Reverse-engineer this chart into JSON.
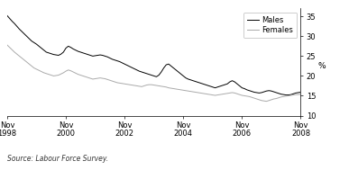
{
  "title": "",
  "ylabel": "%",
  "source_text": "Source: Labour Force Survey.",
  "ylim": [
    10,
    37
  ],
  "yticks": [
    10,
    15,
    20,
    25,
    30,
    35
  ],
  "legend_labels": [
    "Males",
    "Females"
  ],
  "males_color": "#000000",
  "females_color": "#aaaaaa",
  "background_color": "#ffffff",
  "x_tick_positions": [
    0,
    24,
    48,
    72,
    96,
    120
  ],
  "x_tick_labels": [
    "Nov\n1998",
    "Nov\n2000",
    "Nov\n2002",
    "Nov\n2004",
    "Nov\n2006",
    "Nov\n2008"
  ],
  "males_data": [
    35.2,
    34.5,
    33.8,
    33.2,
    32.5,
    31.8,
    31.2,
    30.6,
    30.0,
    29.4,
    28.8,
    28.4,
    28.0,
    27.5,
    27.0,
    26.5,
    26.0,
    25.8,
    25.6,
    25.4,
    25.3,
    25.2,
    25.5,
    26.0,
    27.0,
    27.5,
    27.2,
    26.8,
    26.5,
    26.2,
    26.0,
    25.8,
    25.6,
    25.4,
    25.2,
    25.0,
    25.1,
    25.2,
    25.3,
    25.2,
    25.0,
    24.8,
    24.5,
    24.2,
    24.0,
    23.8,
    23.6,
    23.3,
    23.0,
    22.7,
    22.4,
    22.1,
    21.8,
    21.5,
    21.2,
    21.0,
    20.8,
    20.6,
    20.4,
    20.2,
    20.0,
    19.8,
    20.2,
    21.0,
    22.0,
    22.8,
    23.0,
    22.5,
    22.0,
    21.5,
    21.0,
    20.5,
    20.0,
    19.5,
    19.2,
    19.0,
    18.8,
    18.6,
    18.4,
    18.2,
    18.0,
    17.8,
    17.6,
    17.4,
    17.2,
    17.0,
    17.2,
    17.4,
    17.6,
    17.8,
    18.0,
    18.5,
    18.8,
    18.5,
    18.0,
    17.5,
    17.0,
    16.8,
    16.5,
    16.3,
    16.1,
    15.9,
    15.8,
    15.7,
    15.8,
    16.0,
    16.2,
    16.3,
    16.2,
    16.0,
    15.8,
    15.6,
    15.4,
    15.3,
    15.2,
    15.2,
    15.3,
    15.5,
    15.7,
    15.8,
    15.9
  ],
  "females_data": [
    27.8,
    27.2,
    26.6,
    26.0,
    25.5,
    25.0,
    24.5,
    24.0,
    23.5,
    23.0,
    22.5,
    22.0,
    21.7,
    21.4,
    21.1,
    20.8,
    20.6,
    20.4,
    20.2,
    20.0,
    20.1,
    20.2,
    20.5,
    20.8,
    21.2,
    21.5,
    21.3,
    21.0,
    20.7,
    20.4,
    20.2,
    20.0,
    19.8,
    19.6,
    19.4,
    19.2,
    19.3,
    19.4,
    19.5,
    19.4,
    19.3,
    19.1,
    18.9,
    18.7,
    18.5,
    18.3,
    18.2,
    18.1,
    18.0,
    17.9,
    17.8,
    17.7,
    17.6,
    17.5,
    17.4,
    17.3,
    17.5,
    17.7,
    17.8,
    17.8,
    17.7,
    17.6,
    17.5,
    17.4,
    17.3,
    17.2,
    17.0,
    16.9,
    16.8,
    16.7,
    16.6,
    16.5,
    16.4,
    16.3,
    16.2,
    16.1,
    16.0,
    15.9,
    15.8,
    15.7,
    15.6,
    15.5,
    15.4,
    15.3,
    15.2,
    15.1,
    15.2,
    15.3,
    15.4,
    15.5,
    15.6,
    15.7,
    15.8,
    15.7,
    15.5,
    15.3,
    15.1,
    15.0,
    14.9,
    14.8,
    14.6,
    14.4,
    14.2,
    14.0,
    13.8,
    13.7,
    13.6,
    13.8,
    14.0,
    14.2,
    14.3,
    14.5,
    14.7,
    14.8,
    14.9,
    15.0,
    15.1,
    15.2,
    15.3,
    15.3,
    15.4
  ]
}
